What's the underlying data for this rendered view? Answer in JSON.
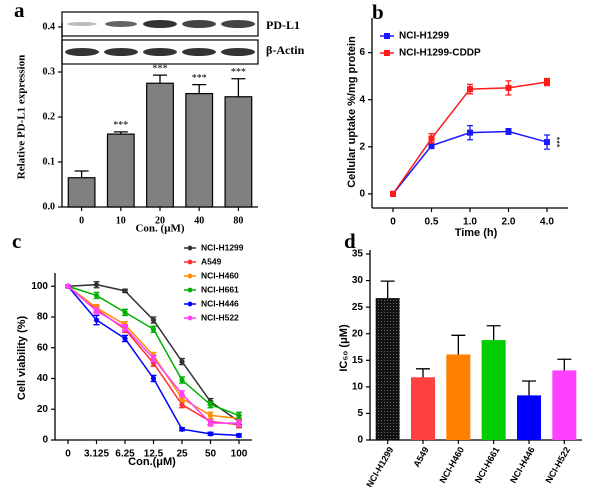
{
  "chart_data": [
    {
      "type": "bar",
      "label": "a",
      "font": "serif",
      "blot_labels": [
        "PD-L1",
        "β-Actin"
      ],
      "ylabel": "Relative PD-L1 expression",
      "xlabel": "Con. (μM)",
      "categories": [
        "0",
        "10",
        "20",
        "40",
        "80"
      ],
      "values": [
        0.065,
        0.162,
        0.275,
        0.252,
        0.245
      ],
      "errors": [
        0.015,
        0.005,
        0.018,
        0.02,
        0.04
      ],
      "significance": [
        null,
        "***",
        "***",
        "***",
        "***"
      ],
      "color": "#808080",
      "ylim": [
        0,
        0.4
      ],
      "yticks": [
        {
          "value": 0,
          "label": "0.0"
        },
        0.1,
        0.2,
        0.3,
        0.4
      ]
    },
    {
      "type": "line",
      "label": "b",
      "marker": "square",
      "legend": "upper left",
      "ylabel": "Cellular uptake %/mg protein",
      "xlabel": "Time (h)",
      "categories": [
        "0",
        "0.5",
        "1.0",
        "2.0",
        "4.0"
      ],
      "series": [
        {
          "name": "NCI-H1299",
          "color": "#1a1aff",
          "values": [
            0,
            2.05,
            2.6,
            2.65,
            2.2
          ],
          "errors": [
            0.05,
            0.12,
            0.3,
            0.12,
            0.3
          ],
          "significance": [
            null,
            null,
            null,
            null,
            "***"
          ]
        },
        {
          "name": "NCI-H1299-CDDP",
          "color": "#ff1a1a",
          "values": [
            0,
            2.35,
            4.45,
            4.5,
            4.75
          ],
          "errors": [
            0.05,
            0.2,
            0.2,
            0.3,
            0.15
          ]
        }
      ],
      "ylim": [
        -0.6,
        7.3
      ],
      "yticks": [
        0,
        2,
        4,
        6
      ]
    },
    {
      "type": "line",
      "label": "c",
      "marker": "circle",
      "legend": "upper right",
      "ylabel": "Cell viability (%)",
      "xlabel": "Con.(μM)",
      "categories": [
        "0",
        "3.125",
        "6.25",
        "12.5",
        "25",
        "50",
        "100"
      ],
      "series": [
        {
          "name": "NCI-H1299",
          "color": "#333333",
          "values": [
            100,
            101,
            97,
            78,
            51,
            25,
            12
          ],
          "errors": [
            1,
            2,
            1,
            2,
            2,
            2,
            2
          ]
        },
        {
          "name": "A549",
          "color": "#ff3030",
          "values": [
            100,
            85,
            72,
            50,
            23,
            12,
            10
          ],
          "errors": [
            1,
            2,
            2,
            2,
            2,
            2,
            2
          ]
        },
        {
          "name": "NCI-H460",
          "color": "#ff8c00",
          "values": [
            100,
            86,
            75,
            55,
            27,
            16,
            14
          ],
          "errors": [
            1,
            2,
            2,
            2,
            2,
            2,
            2
          ]
        },
        {
          "name": "NCI-H661",
          "color": "#00b000",
          "values": [
            100,
            94,
            83,
            72,
            39,
            23,
            16
          ],
          "errors": [
            1,
            2,
            2,
            2,
            2,
            2,
            2
          ]
        },
        {
          "name": "NCI-H446",
          "color": "#0000ff",
          "values": [
            100,
            78,
            66,
            40,
            7,
            4,
            3
          ],
          "errors": [
            1,
            3,
            2,
            2,
            1,
            1,
            1
          ]
        },
        {
          "name": "NCI-H522",
          "color": "#ff40ff",
          "values": [
            100,
            84,
            73,
            53,
            30,
            11,
            11
          ],
          "errors": [
            1,
            2,
            2,
            2,
            2,
            2,
            2
          ]
        }
      ],
      "ylim": [
        0,
        106
      ],
      "yticks": [
        0,
        20,
        40,
        60,
        80,
        100
      ]
    },
    {
      "type": "bar",
      "label": "d",
      "font": "sans",
      "xtick_rotation": -60,
      "ylabel": "IC₅₀ (μM)",
      "categories": [
        "NCI-H1299",
        "A549",
        "NCI-H460",
        "NCI-H661",
        "NCI-H446",
        "NCI-H522"
      ],
      "values": [
        26.7,
        11.8,
        16.1,
        18.8,
        8.4,
        13.1
      ],
      "errors": [
        3.2,
        1.6,
        3.6,
        2.7,
        2.7,
        2.1
      ],
      "colors": [
        "#222222",
        "#ff4040",
        "#ff8000",
        "#00cc00",
        "#0000ff",
        "#ff40ff"
      ],
      "ylim": [
        0,
        35
      ],
      "yticks": [
        0,
        5,
        10,
        15,
        20,
        25,
        30,
        35
      ]
    }
  ]
}
